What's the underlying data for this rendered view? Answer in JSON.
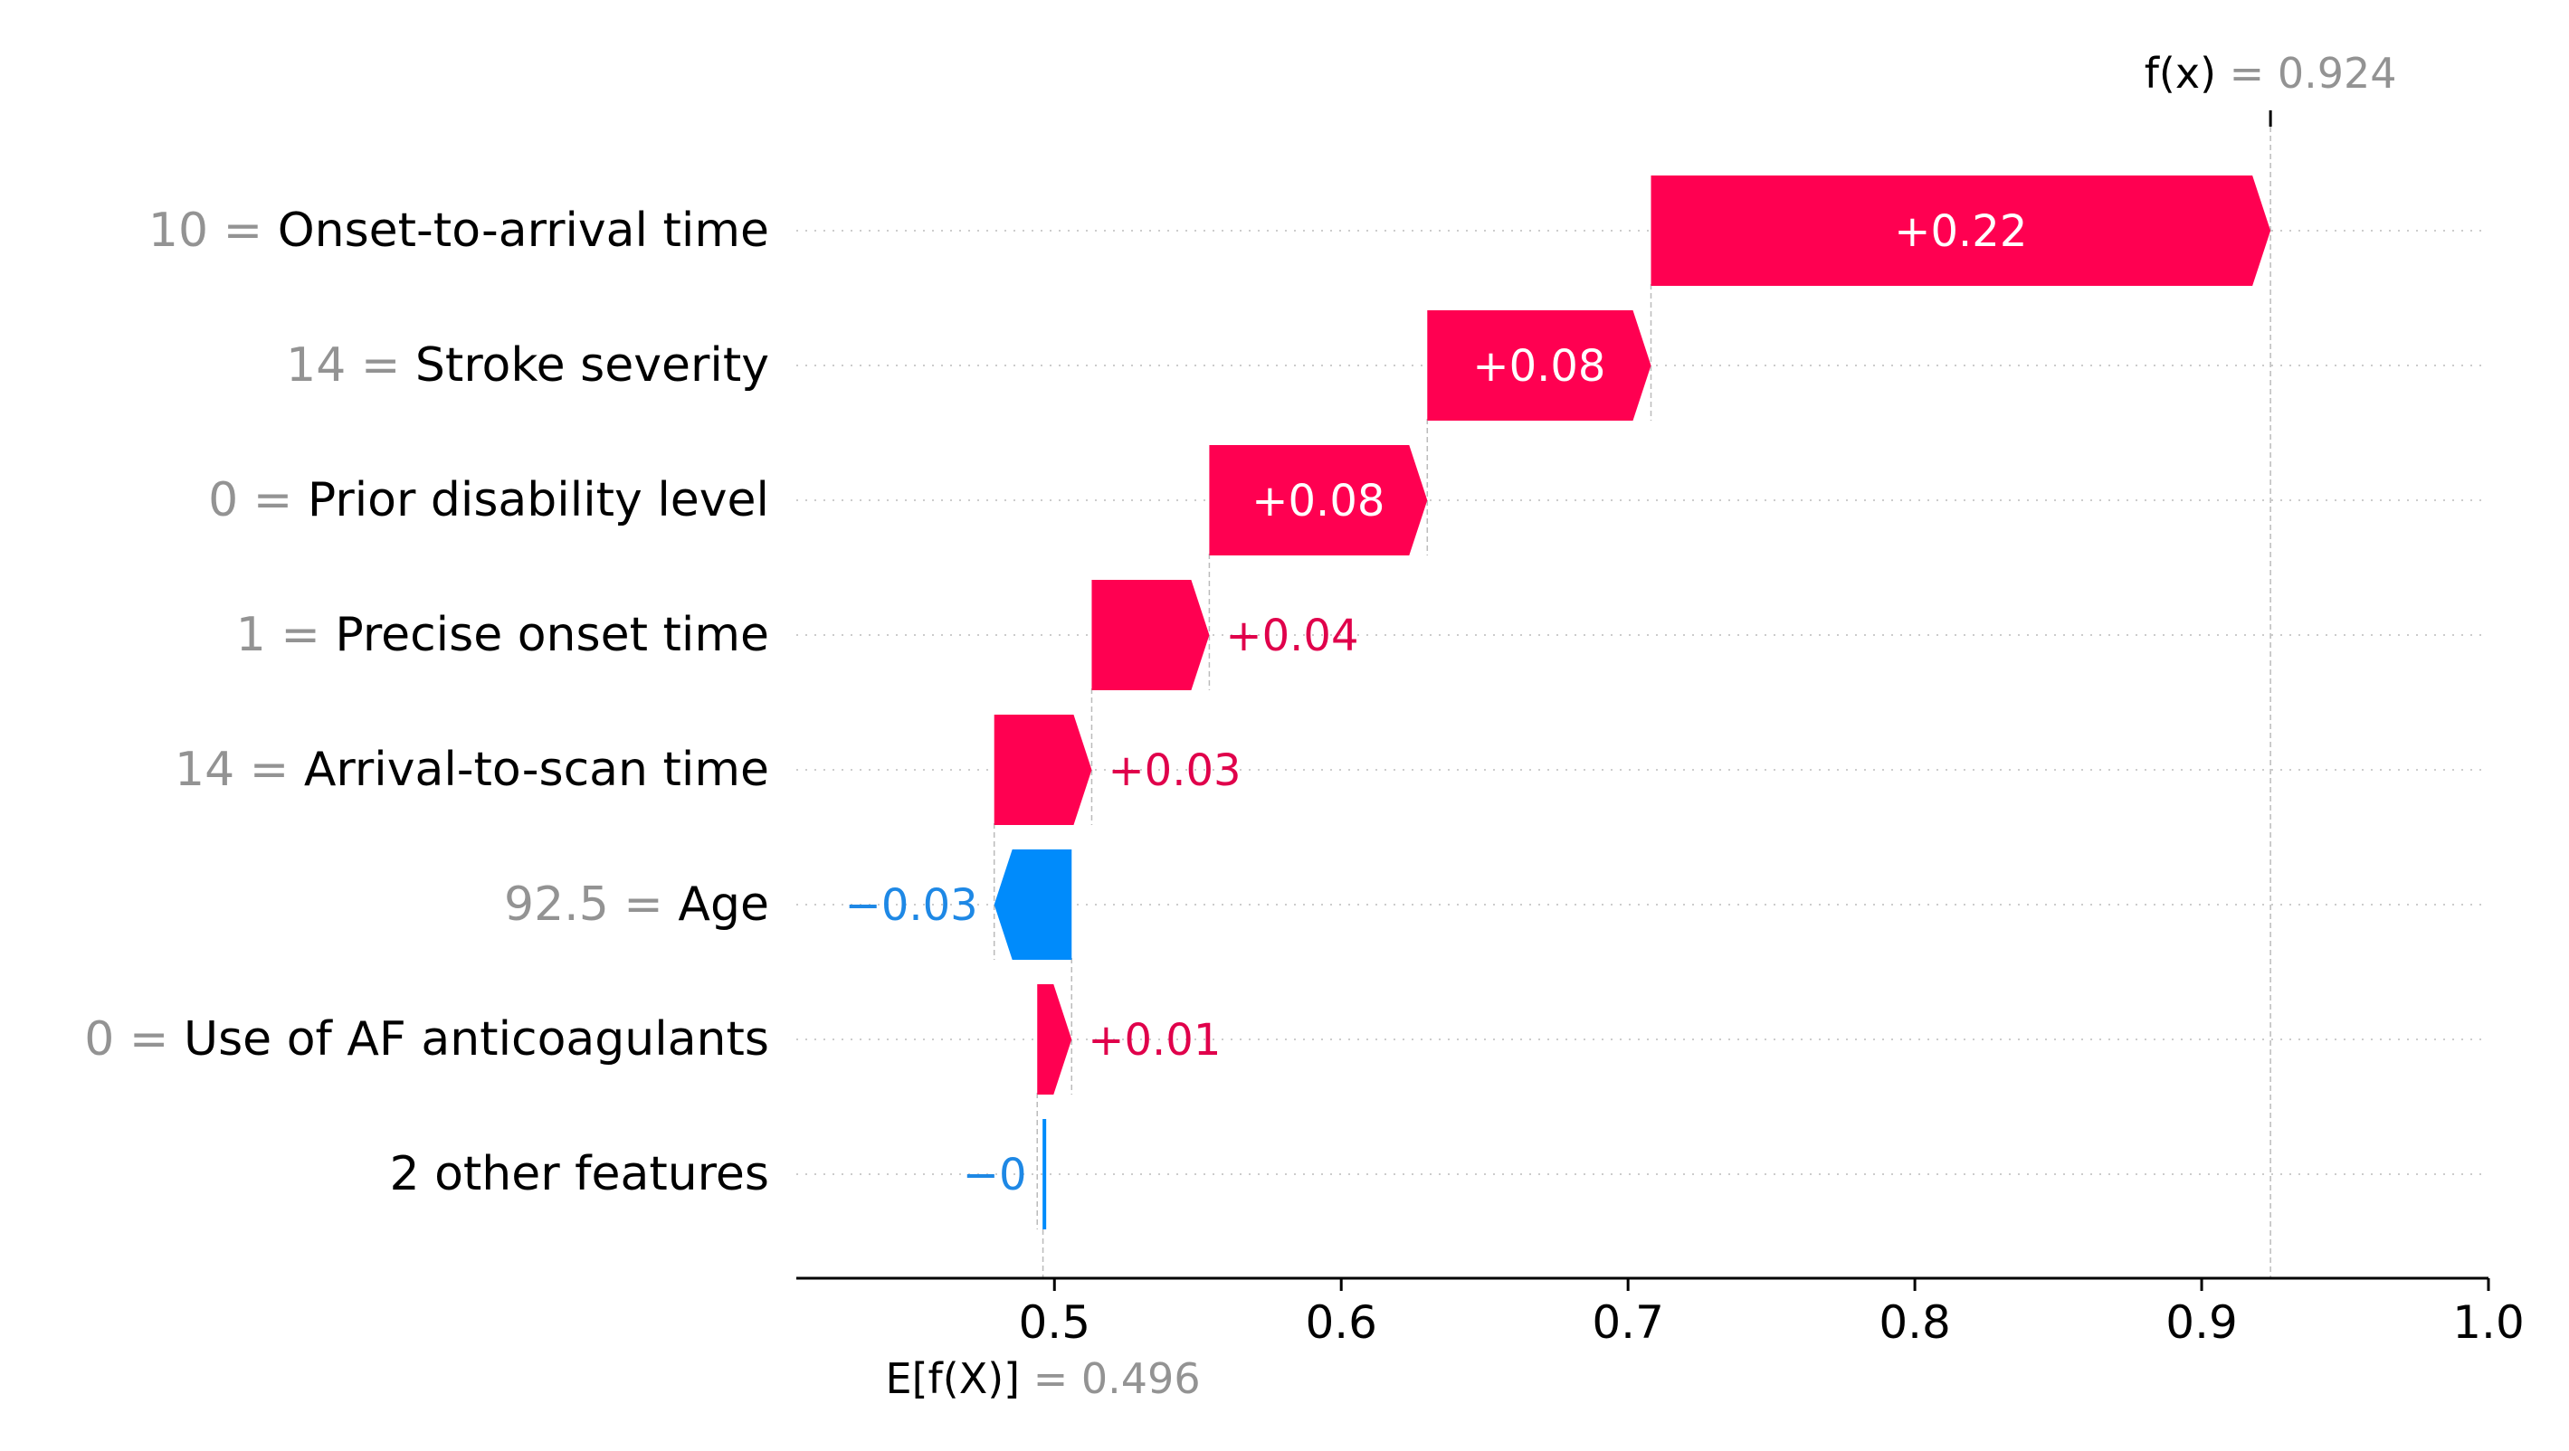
{
  "chart_data": {
    "type": "waterfall",
    "base_value": 0.496,
    "output_value": 0.924,
    "base_label_expr": "E[f(X)]",
    "base_label_value": "= 0.496",
    "output_label_expr": "f(x)",
    "output_label_value": "= 0.924",
    "xlim": [
      0.41,
      1.0
    ],
    "xticks": [
      0.5,
      0.6,
      0.7,
      0.8,
      0.9,
      1.0
    ],
    "xtick_labels": [
      "0.5",
      "0.6",
      "0.7",
      "0.8",
      "0.9",
      "1.0"
    ],
    "features": [
      {
        "value": "10 =",
        "name": "Onset-to-arrival time",
        "contribution": 0.216,
        "start": 0.708,
        "label": "+0.22"
      },
      {
        "value": "14 =",
        "name": "Stroke severity",
        "contribution": 0.078,
        "start": 0.63,
        "label": "+0.08"
      },
      {
        "value": "0 =",
        "name": "Prior disability level",
        "contribution": 0.076,
        "start": 0.554,
        "label": "+0.08"
      },
      {
        "value": "1 =",
        "name": "Precise onset time",
        "contribution": 0.041,
        "start": 0.513,
        "label": "+0.04"
      },
      {
        "value": "14 =",
        "name": "Arrival-to-scan time",
        "contribution": 0.034,
        "start": 0.479,
        "label": "+0.03"
      },
      {
        "value": "92.5 =",
        "name": "Age",
        "contribution": -0.027,
        "start": 0.506,
        "label": "−0.03"
      },
      {
        "value": "0 =",
        "name": "Use of AF anticoagulants",
        "contribution": 0.012,
        "start": 0.494,
        "label": "+0.01"
      },
      {
        "value": "",
        "name": "2 other features",
        "contribution": -0.0005,
        "start": 0.4965,
        "label": "−0"
      }
    ],
    "colors": {
      "positive": "#ff0051",
      "negative": "#008bfb",
      "positive_text": "#e0004b",
      "negative_text": "#1e88e5",
      "grey": "#939393"
    }
  }
}
